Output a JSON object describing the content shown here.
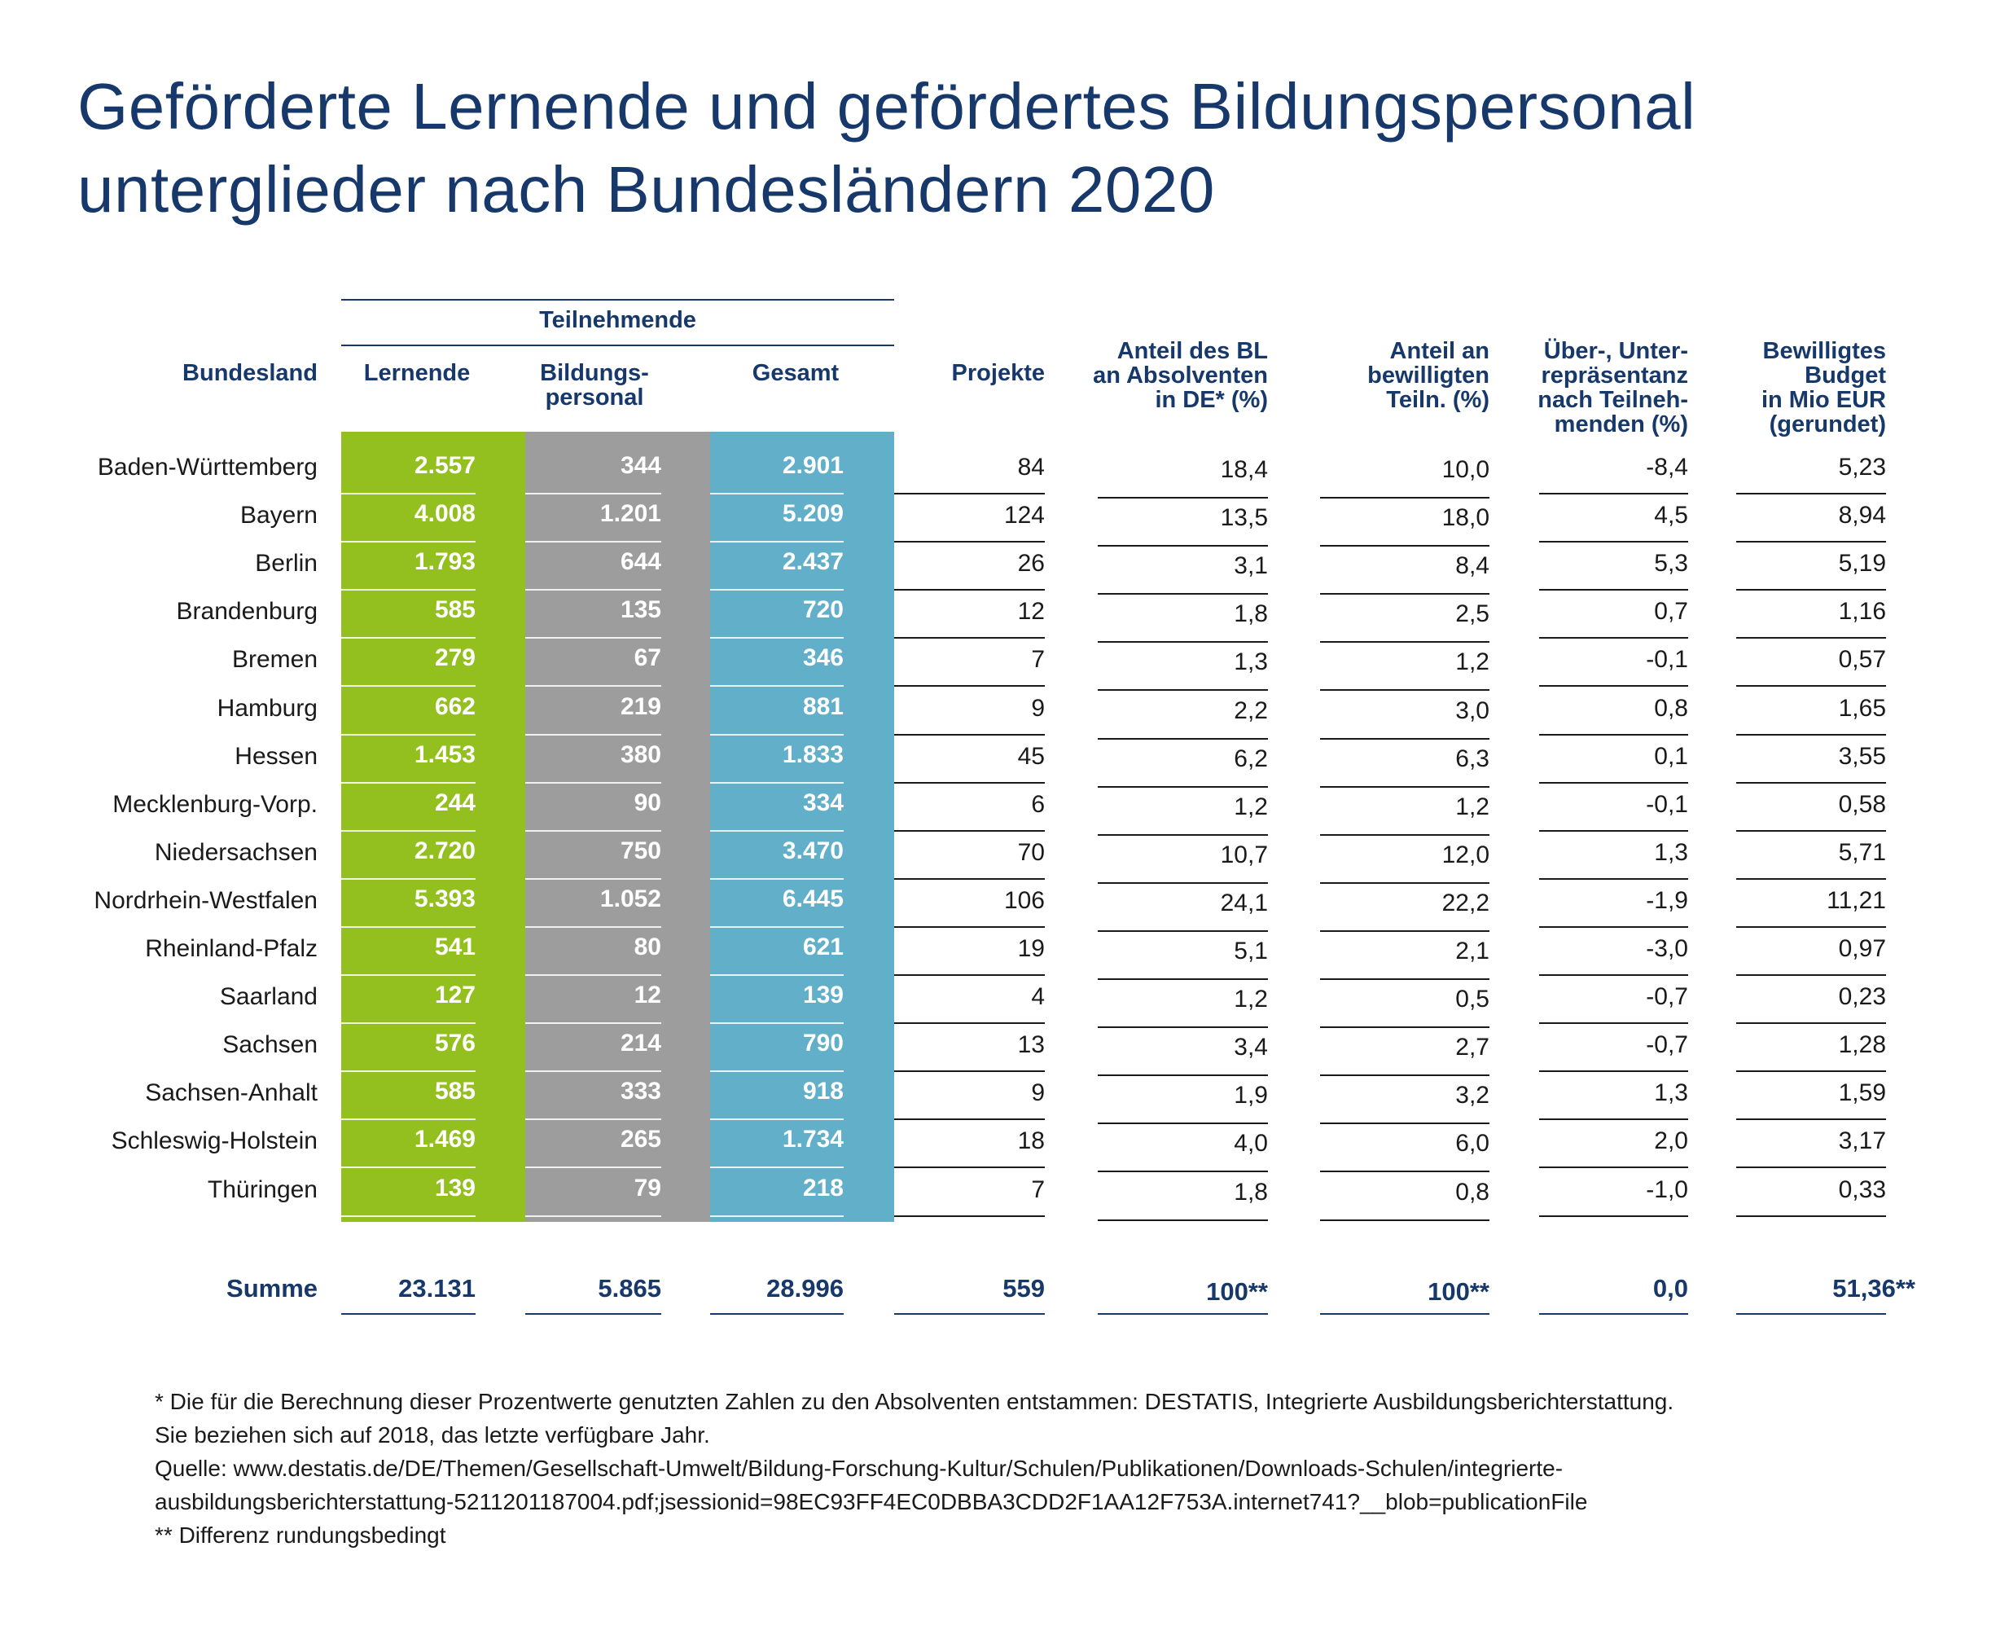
{
  "title": [
    "Geförderte Lernende und gefördertes Bildungspersonal",
    "unterglieder nach Bundesländern 2020"
  ],
  "colors": {
    "navy": "#17386b",
    "lernende": "#93bf1f",
    "bildungspersonal": "#9d9d9d",
    "gesamt": "#62afc9"
  },
  "header": {
    "group": "Teilnehmende",
    "bundesland": "Bundesland",
    "lernende": "Lernende",
    "bildungspersonal": [
      "Bildungs-",
      "personal"
    ],
    "gesamt": "Gesamt",
    "projekte": "Projekte",
    "anteil_bl": [
      "Anteil des BL",
      "an Absolventen",
      "in DE* (%)"
    ],
    "anteil_teiln": [
      "Anteil an",
      "bewilligten",
      "Teiln. (%)"
    ],
    "repraesentanz": [
      "Über-, Unter-",
      "repräsentanz",
      "nach Teilneh-",
      "menden (%)"
    ],
    "budget": [
      "Bewilligtes",
      "Budget",
      "in Mio EUR",
      "(gerundet)"
    ]
  },
  "rows": [
    {
      "land": "Baden-Württemberg",
      "lernende": "2.557",
      "personal": "344",
      "gesamt": "2.901",
      "projekte": "84",
      "anteil_bl": "18,4",
      "anteil_teiln": "10,0",
      "repr": "-8,4",
      "budget": "5,23"
    },
    {
      "land": "Bayern",
      "lernende": "4.008",
      "personal": "1.201",
      "gesamt": "5.209",
      "projekte": "124",
      "anteil_bl": "13,5",
      "anteil_teiln": "18,0",
      "repr": "4,5",
      "budget": "8,94"
    },
    {
      "land": "Berlin",
      "lernende": "1.793",
      "personal": "644",
      "gesamt": "2.437",
      "projekte": "26",
      "anteil_bl": "3,1",
      "anteil_teiln": "8,4",
      "repr": "5,3",
      "budget": "5,19"
    },
    {
      "land": "Brandenburg",
      "lernende": "585",
      "personal": "135",
      "gesamt": "720",
      "projekte": "12",
      "anteil_bl": "1,8",
      "anteil_teiln": "2,5",
      "repr": "0,7",
      "budget": "1,16"
    },
    {
      "land": "Bremen",
      "lernende": "279",
      "personal": "67",
      "gesamt": "346",
      "projekte": "7",
      "anteil_bl": "1,3",
      "anteil_teiln": "1,2",
      "repr": "-0,1",
      "budget": "0,57"
    },
    {
      "land": "Hamburg",
      "lernende": "662",
      "personal": "219",
      "gesamt": "881",
      "projekte": "9",
      "anteil_bl": "2,2",
      "anteil_teiln": "3,0",
      "repr": "0,8",
      "budget": "1,65"
    },
    {
      "land": "Hessen",
      "lernende": "1.453",
      "personal": "380",
      "gesamt": "1.833",
      "projekte": "45",
      "anteil_bl": "6,2",
      "anteil_teiln": "6,3",
      "repr": "0,1",
      "budget": "3,55"
    },
    {
      "land": "Mecklenburg-Vorp.",
      "lernende": "244",
      "personal": "90",
      "gesamt": "334",
      "projekte": "6",
      "anteil_bl": "1,2",
      "anteil_teiln": "1,2",
      "repr": "-0,1",
      "budget": "0,58"
    },
    {
      "land": "Niedersachsen",
      "lernende": "2.720",
      "personal": "750",
      "gesamt": "3.470",
      "projekte": "70",
      "anteil_bl": "10,7",
      "anteil_teiln": "12,0",
      "repr": "1,3",
      "budget": "5,71"
    },
    {
      "land": "Nordrhein-Westfalen",
      "lernende": "5.393",
      "personal": "1.052",
      "gesamt": "6.445",
      "projekte": "106",
      "anteil_bl": "24,1",
      "anteil_teiln": "22,2",
      "repr": "-1,9",
      "budget": "11,21"
    },
    {
      "land": "Rheinland-Pfalz",
      "lernende": "541",
      "personal": "80",
      "gesamt": "621",
      "projekte": "19",
      "anteil_bl": "5,1",
      "anteil_teiln": "2,1",
      "repr": "-3,0",
      "budget": "0,97"
    },
    {
      "land": "Saarland",
      "lernende": "127",
      "personal": "12",
      "gesamt": "139",
      "projekte": "4",
      "anteil_bl": "1,2",
      "anteil_teiln": "0,5",
      "repr": "-0,7",
      "budget": "0,23"
    },
    {
      "land": "Sachsen",
      "lernende": "576",
      "personal": "214",
      "gesamt": "790",
      "projekte": "13",
      "anteil_bl": "3,4",
      "anteil_teiln": "2,7",
      "repr": "-0,7",
      "budget": "1,28"
    },
    {
      "land": "Sachsen-Anhalt",
      "lernende": "585",
      "personal": "333",
      "gesamt": "918",
      "projekte": "9",
      "anteil_bl": "1,9",
      "anteil_teiln": "3,2",
      "repr": "1,3",
      "budget": "1,59"
    },
    {
      "land": "Schleswig-Holstein",
      "lernende": "1.469",
      "personal": "265",
      "gesamt": "1.734",
      "projekte": "18",
      "anteil_bl": "4,0",
      "anteil_teiln": "6,0",
      "repr": "2,0",
      "budget": "3,17"
    },
    {
      "land": "Thüringen",
      "lernende": "139",
      "personal": "79",
      "gesamt": "218",
      "projekte": "7",
      "anteil_bl": "1,8",
      "anteil_teiln": "0,8",
      "repr": "-1,0",
      "budget": "0,33"
    }
  ],
  "summe": {
    "label": "Summe",
    "lernende": "23.131",
    "personal": "5.865",
    "gesamt": "28.996",
    "projekte": "559",
    "anteil_bl": "100**",
    "anteil_teiln": "100**",
    "repr": "0,0",
    "budget": "51,36**"
  },
  "footnotes": [
    "* Die für die Berechnung dieser Prozentwerte genutzten Zahlen zu den Absolventen entstammen: DESTATIS, Integrierte Ausbildungsberichterstattung.",
    "Sie beziehen sich auf 2018, das letzte verfügbare Jahr.",
    "Quelle: www.destatis.de/DE/Themen/Gesellschaft-Umwelt/Bildung-Forschung-Kultur/Schulen/Publikationen/Downloads-Schulen/integrierte-",
    "ausbildungsberichterstattung-5211201187004.pdf;jsessionid=98EC93FF4EC0DBBA3CDD2F1AA12F753A.internet741?__blob=publicationFile",
    "** Differenz rundungsbedingt"
  ]
}
